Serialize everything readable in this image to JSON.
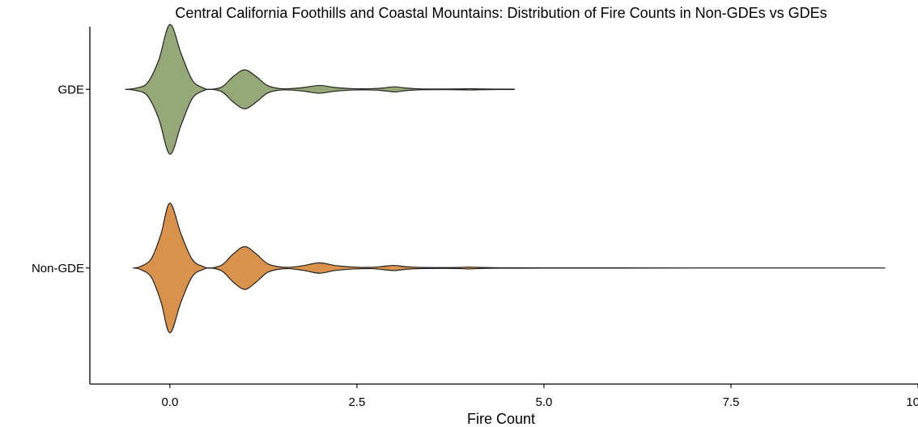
{
  "chart_data": {
    "type": "violin",
    "orientation": "horizontal",
    "title": "Central California Foothills and Coastal Mountains: Distribution of Fire Counts in Non-GDEs vs GDEs",
    "xlabel": "Fire Count",
    "ylabel": "",
    "xlim": [
      -1.07,
      10.0
    ],
    "x_ticks": [
      0.0,
      2.5,
      5.0,
      7.5,
      10.0
    ],
    "x_tick_labels": [
      "0.0",
      "2.5",
      "5.0",
      "7.5",
      "10.0"
    ],
    "categories": [
      "GDE",
      "Non-GDE"
    ],
    "grid": false,
    "legend": "none",
    "series": [
      {
        "category": "GDE",
        "color": "#96a878",
        "x_range": [
          -0.58,
          4.58
        ],
        "density_profile": [
          [
            -0.58,
            0.0
          ],
          [
            -0.45,
            0.02
          ],
          [
            -0.3,
            0.1
          ],
          [
            -0.15,
            0.45
          ],
          [
            0.0,
            1.0
          ],
          [
            0.15,
            0.55
          ],
          [
            0.3,
            0.14
          ],
          [
            0.45,
            0.02
          ],
          [
            0.55,
            0.0
          ],
          [
            0.7,
            0.04
          ],
          [
            0.85,
            0.2
          ],
          [
            1.0,
            0.3
          ],
          [
            1.15,
            0.2
          ],
          [
            1.3,
            0.06
          ],
          [
            1.45,
            0.015
          ],
          [
            1.6,
            0.01
          ],
          [
            1.8,
            0.03
          ],
          [
            2.0,
            0.06
          ],
          [
            2.2,
            0.03
          ],
          [
            2.45,
            0.01
          ],
          [
            2.7,
            0.01
          ],
          [
            2.85,
            0.02
          ],
          [
            3.0,
            0.04
          ],
          [
            3.15,
            0.02
          ],
          [
            3.35,
            0.007
          ],
          [
            3.6,
            0.005
          ],
          [
            3.85,
            0.006
          ],
          [
            4.0,
            0.01
          ],
          [
            4.15,
            0.006
          ],
          [
            4.35,
            0.004
          ],
          [
            4.58,
            0.003
          ]
        ]
      },
      {
        "category": "Non-GDE",
        "color": "#d8924c",
        "x_range": [
          -0.48,
          9.5
        ],
        "density_profile": [
          [
            -0.48,
            0.0
          ],
          [
            -0.4,
            0.02
          ],
          [
            -0.25,
            0.14
          ],
          [
            -0.12,
            0.52
          ],
          [
            0.0,
            1.0
          ],
          [
            0.15,
            0.52
          ],
          [
            0.3,
            0.13
          ],
          [
            0.45,
            0.02
          ],
          [
            0.55,
            0.0
          ],
          [
            0.7,
            0.05
          ],
          [
            0.85,
            0.22
          ],
          [
            1.0,
            0.33
          ],
          [
            1.15,
            0.22
          ],
          [
            1.3,
            0.07
          ],
          [
            1.45,
            0.02
          ],
          [
            1.6,
            0.01
          ],
          [
            1.8,
            0.04
          ],
          [
            2.0,
            0.08
          ],
          [
            2.2,
            0.04
          ],
          [
            2.45,
            0.015
          ],
          [
            2.7,
            0.01
          ],
          [
            2.85,
            0.025
          ],
          [
            3.0,
            0.04
          ],
          [
            3.15,
            0.02
          ],
          [
            3.4,
            0.008
          ],
          [
            3.7,
            0.006
          ],
          [
            3.9,
            0.01
          ],
          [
            4.0,
            0.015
          ],
          [
            4.1,
            0.01
          ],
          [
            4.4,
            0.004
          ],
          [
            5.0,
            0.002
          ],
          [
            6.0,
            0.0015
          ],
          [
            7.0,
            0.001
          ],
          [
            8.0,
            0.001
          ],
          [
            9.0,
            0.001
          ],
          [
            9.5,
            0.001
          ]
        ]
      }
    ]
  }
}
